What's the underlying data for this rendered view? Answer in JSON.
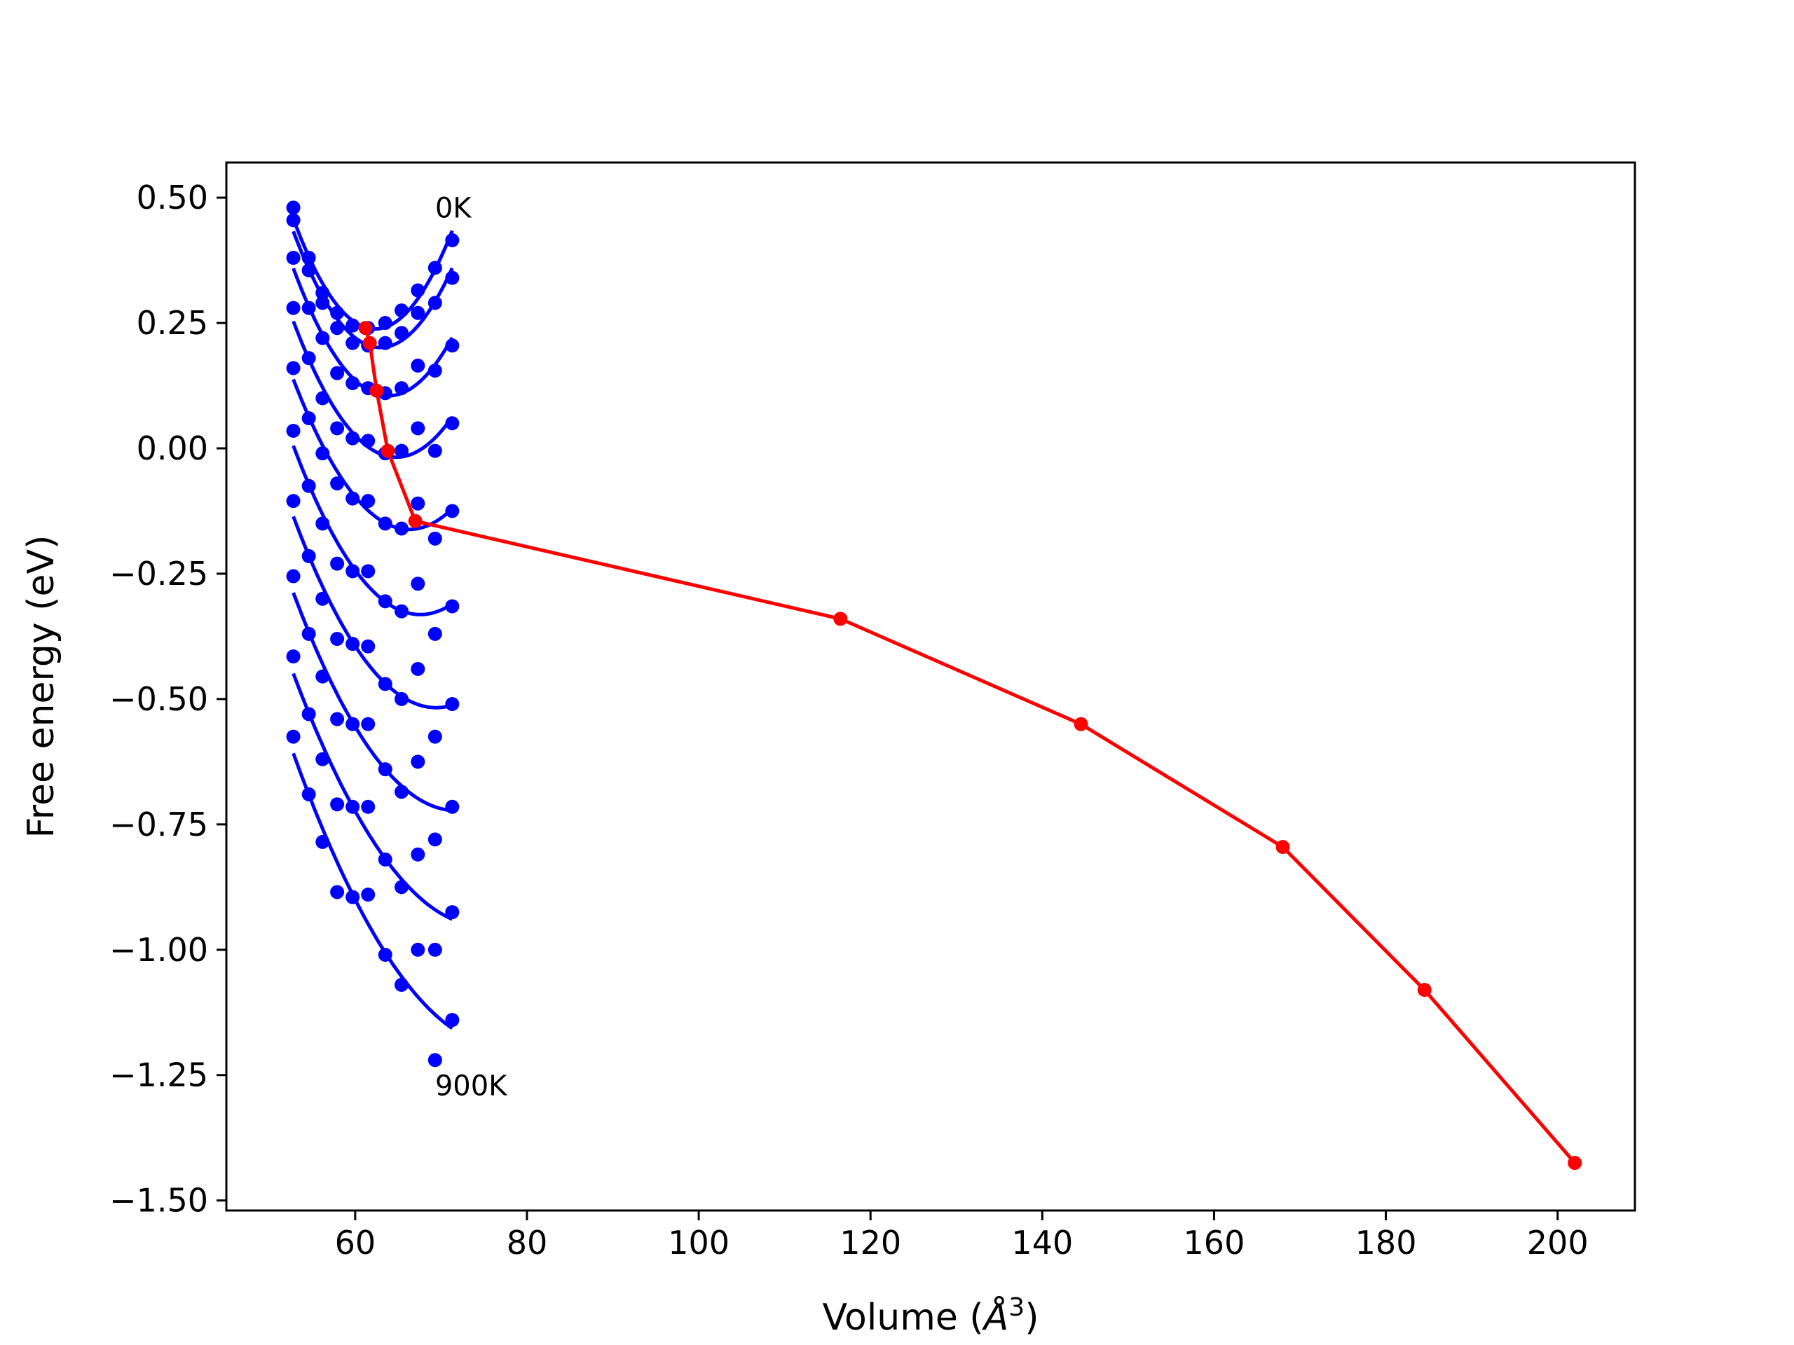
{
  "chart_data": {
    "type": "line",
    "xlabel": "Volume (Å³)",
    "xlabel_main": "Volume (",
    "xlabel_unit": "Å",
    "xlabel_exp": "3",
    "xlabel_close": ")",
    "ylabel": "Free energy (eV)",
    "xlim": [
      45,
      209
    ],
    "ylim": [
      -1.52,
      0.57
    ],
    "xticks": [
      60,
      80,
      100,
      120,
      140,
      160,
      180,
      200
    ],
    "yticks": [
      0.5,
      0.25,
      0.0,
      -0.25,
      -0.5,
      -0.75,
      -1.0,
      -1.25,
      -1.5
    ],
    "xtick_labels": [
      "60",
      "80",
      "100",
      "120",
      "140",
      "160",
      "180",
      "200"
    ],
    "ytick_labels": [
      "0.50",
      "0.25",
      "0.00",
      "−0.25",
      "−0.50",
      "−0.75",
      "−1.00",
      "−1.25",
      "−1.50"
    ],
    "grid": false,
    "legend": "none",
    "colors": {
      "isotherm": "#0000ff",
      "minimum_path": "#ff0000",
      "axes": "#000000"
    },
    "annotations": [
      {
        "text": "0K",
        "x": 69.3,
        "y": 0.46
      },
      {
        "text": "900K",
        "x": 69.3,
        "y": -1.29
      }
    ],
    "isotherm_volumes": [
      52.8,
      54.6,
      56.2,
      57.9,
      59.7,
      61.5,
      63.5,
      65.4,
      67.3,
      69.3,
      71.3
    ],
    "isotherms": [
      {
        "points": [
          0.48,
          0.38,
          0.31,
          0.27,
          0.245,
          0.24,
          0.25,
          0.275,
          0.315,
          0.36,
          0.415
        ]
      },
      {
        "points": [
          0.455,
          0.355,
          0.29,
          0.24,
          0.21,
          0.205,
          0.21,
          0.23,
          0.27,
          0.29,
          0.34
        ]
      },
      {
        "points": [
          0.38,
          0.28,
          0.22,
          0.15,
          0.13,
          0.12,
          0.11,
          0.12,
          0.165,
          0.155,
          0.205
        ]
      },
      {
        "points": [
          0.28,
          0.18,
          0.1,
          0.04,
          0.02,
          0.015,
          -0.01,
          -0.005,
          0.04,
          -0.005,
          0.05
        ]
      },
      {
        "points": [
          0.16,
          0.06,
          -0.01,
          -0.07,
          -0.1,
          -0.105,
          -0.15,
          -0.16,
          -0.11,
          -0.18,
          -0.125
        ]
      },
      {
        "points": [
          0.035,
          -0.075,
          -0.15,
          -0.23,
          -0.245,
          -0.245,
          -0.305,
          -0.325,
          -0.27,
          -0.37,
          -0.315
        ]
      },
      {
        "points": [
          -0.105,
          -0.215,
          -0.3,
          -0.38,
          -0.39,
          -0.395,
          -0.47,
          -0.5,
          -0.44,
          -0.575,
          -0.51
        ]
      },
      {
        "points": [
          -0.255,
          -0.37,
          -0.455,
          -0.54,
          -0.55,
          -0.55,
          -0.64,
          -0.685,
          -0.625,
          -0.78,
          -0.715
        ]
      },
      {
        "points": [
          -0.415,
          -0.53,
          -0.62,
          -0.71,
          -0.715,
          -0.715,
          -0.82,
          -0.875,
          -0.81,
          -1.0,
          -0.925
        ]
      },
      {
        "points": [
          -0.575,
          -0.69,
          -0.785,
          -0.885,
          -0.895,
          -0.89,
          -1.01,
          -1.07,
          -1.0,
          -1.22,
          -1.14
        ]
      }
    ],
    "minimum_path": {
      "x": [
        61.2,
        61.7,
        62.5,
        63.8,
        67.0,
        116.5,
        144.5,
        168.0,
        184.5,
        202.0
      ],
      "y": [
        0.24,
        0.21,
        0.115,
        -0.005,
        -0.145,
        -0.34,
        -0.55,
        -0.795,
        -1.08,
        -1.425
      ]
    }
  }
}
